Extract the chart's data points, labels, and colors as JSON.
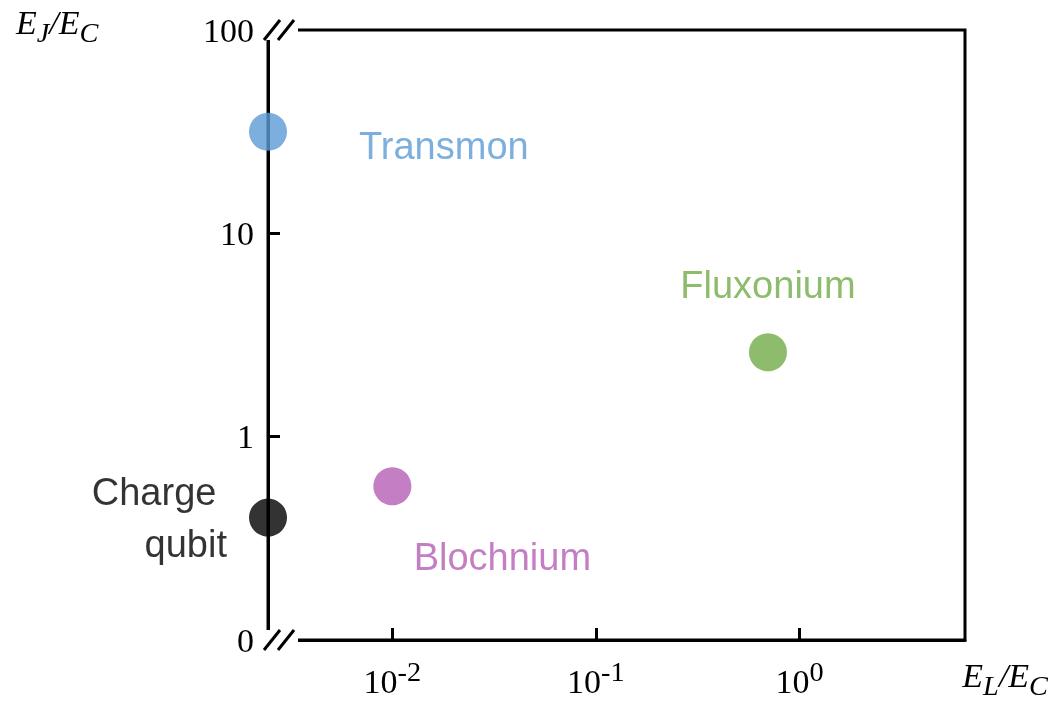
{
  "chart_data": {
    "type": "scatter",
    "xlabel": "E$_{L}$/E$_{C}$",
    "ylabel": "E$_{J}$/E$_{C}$",
    "log": "xy",
    "xlim": [
      0.00245,
      6.5
    ],
    "ylim": [
      0.1,
      100
    ],
    "xticks": [
      {
        "value": 0.01,
        "label": "10$^{-2}$"
      },
      {
        "value": 0.1,
        "label": "10$^{-1}$"
      },
      {
        "value": 1,
        "label": "10$^{0}$"
      }
    ],
    "yticks": [
      {
        "value": 0.1,
        "label": "0"
      },
      1,
      10,
      100
    ],
    "grid": false,
    "legend": false,
    "marker": "circle",
    "series": [
      {
        "name": "Transmon",
        "color": "#5b9bd5",
        "x": [
          0.00245
        ],
        "values": [
          31.6
        ]
      },
      {
        "name": "Fluxonium",
        "color": "#70ad47",
        "x": [
          0.7
        ],
        "values": [
          2.6
        ]
      },
      {
        "name": "Blochnium",
        "color": "#b55fb5",
        "x": [
          0.01
        ],
        "values": [
          0.57
        ]
      },
      {
        "name": "Charge qubit",
        "color": "#000000",
        "x": [
          0.00245
        ],
        "values": [
          0.4
        ]
      }
    ]
  }
}
